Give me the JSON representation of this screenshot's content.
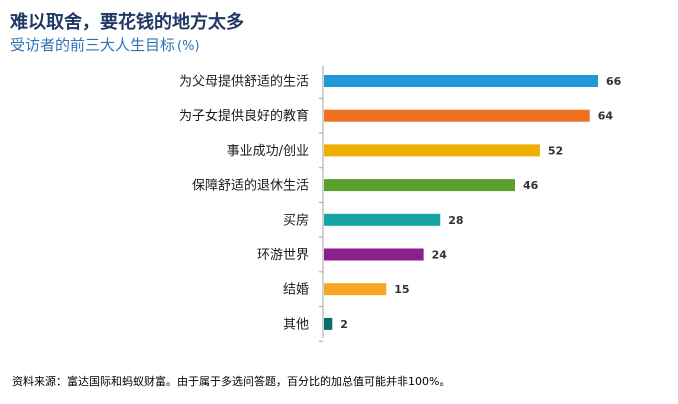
{
  "chart_data": {
    "type": "bar",
    "orientation": "horizontal",
    "title": "难以取舍，要花钱的地方太多",
    "subtitle": "受访者的前三大人生目标",
    "unit": "(%)",
    "categories": [
      "为父母提供舒适的生活",
      "为子女提供良好的教育",
      "事业成功/创业",
      "保障舒适的退休生活",
      "买房",
      "环游世界",
      "结婚",
      "其他"
    ],
    "values": [
      66,
      64,
      52,
      46,
      28,
      24,
      15,
      2
    ],
    "colors": [
      "#1f9ad6",
      "#f0701f",
      "#f0ae00",
      "#5aa02c",
      "#15a3a3",
      "#8b1f8c",
      "#f5a623",
      "#0b6e6e"
    ],
    "xlim": [
      0,
      66
    ],
    "grid": false,
    "legend": "none"
  },
  "footnote": "资料来源：富达国际和蚂蚁财富。由于属于多选问答题，百分比的加总值可能并非100%。"
}
